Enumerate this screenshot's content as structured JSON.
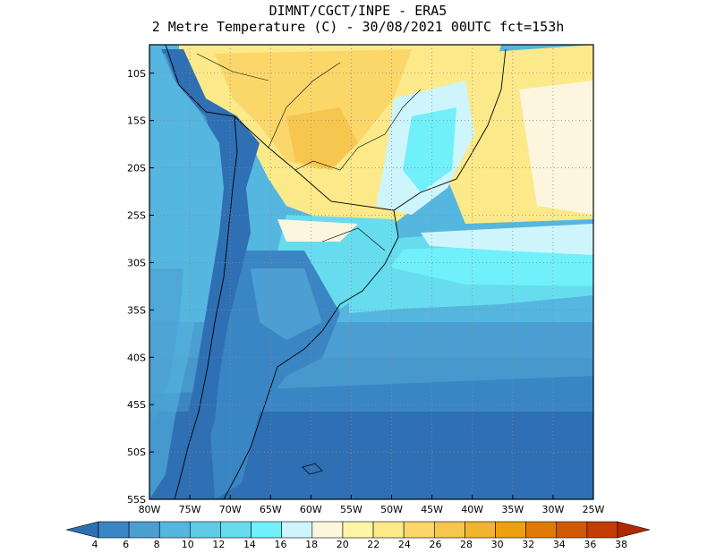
{
  "title_line1": "DIMNT/CGCT/INPE  -  ERA5",
  "title_line2": "2 Metre Temperature (C)  -  30/08/2021 00UTC fct=153h",
  "map": {
    "lon_ticks": [
      "80W",
      "75W",
      "70W",
      "65W",
      "60W",
      "55W",
      "50W",
      "45W",
      "40W",
      "35W",
      "30W",
      "25W"
    ],
    "lat_ticks": [
      "10S",
      "15S",
      "20S",
      "25S",
      "30S",
      "35S",
      "40S",
      "45S",
      "50S",
      "55S"
    ],
    "lon_range": [
      -80,
      -25
    ],
    "lat_range": [
      -55,
      -7
    ],
    "grid": true
  },
  "colorbar": {
    "labels": [
      "4",
      "6",
      "8",
      "10",
      "12",
      "14",
      "16",
      "18",
      "20",
      "22",
      "24",
      "26",
      "28",
      "30",
      "32",
      "34",
      "36",
      "38"
    ],
    "colors": [
      "#2f6fb3",
      "#3a86c4",
      "#4b9fd2",
      "#55b6df",
      "#5fcbe6",
      "#67dcee",
      "#6ff0fb",
      "#cdf5fb",
      "#fdf6df",
      "#fef5a6",
      "#fce98a",
      "#fbd76a",
      "#f6c64e",
      "#f2b52f",
      "#eea00f",
      "#e07a06",
      "#d05a04",
      "#c43c02",
      "#b02a00"
    ]
  }
}
